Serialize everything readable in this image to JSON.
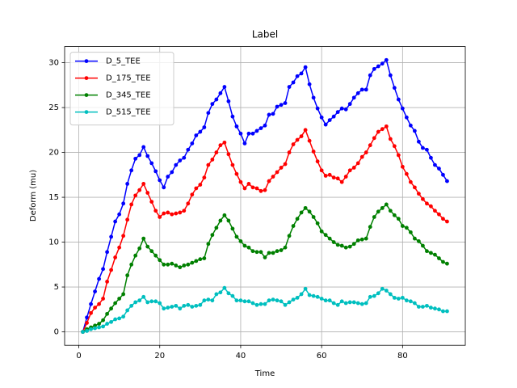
{
  "chart_data": {
    "type": "line",
    "title": "Label",
    "x_label": "Time",
    "y_label": "Deform (mu)",
    "x": [
      1,
      2,
      3,
      4,
      5,
      6,
      7,
      8,
      9,
      10,
      11,
      12,
      13,
      14,
      15,
      16,
      17,
      18,
      19,
      20,
      21,
      22,
      23,
      24,
      25,
      26,
      27,
      28,
      29,
      30,
      31,
      32,
      33,
      34,
      35,
      36,
      37,
      38,
      39,
      40,
      41,
      42,
      43,
      44,
      45,
      46,
      47,
      48,
      49,
      50,
      51,
      52,
      53,
      54,
      55,
      56,
      57,
      58,
      59,
      60,
      61,
      62,
      63,
      64,
      65,
      66,
      67,
      68,
      69,
      70,
      71,
      72,
      73,
      74,
      75,
      76,
      77,
      78,
      79,
      80,
      81,
      82,
      83,
      84,
      85,
      86,
      87,
      88,
      89,
      90,
      91
    ],
    "series": [
      {
        "name": "D_5_TEE",
        "color": "#0000ff",
        "values": [
          0,
          1.6,
          3.1,
          4.5,
          5.9,
          7.0,
          8.9,
          10.6,
          12.3,
          13.1,
          14.3,
          16.5,
          18.0,
          19.3,
          19.7,
          20.6,
          19.6,
          18.8,
          17.9,
          16.9,
          16.1,
          17.3,
          17.8,
          18.6,
          19.1,
          19.4,
          20.3,
          21.0,
          21.9,
          22.3,
          22.8,
          24.4,
          25.4,
          25.9,
          26.6,
          27.3,
          25.7,
          24.0,
          22.9,
          22.1,
          21.0,
          22.1,
          22.1,
          22.4,
          22.7,
          23.0,
          24.2,
          24.3,
          25.1,
          25.3,
          25.5,
          27.3,
          27.8,
          28.5,
          28.8,
          29.5,
          27.6,
          26.1,
          24.9,
          23.9,
          23.1,
          23.6,
          24.0,
          24.5,
          24.9,
          24.8,
          25.4,
          26.1,
          26.6,
          27.0,
          27.0,
          28.6,
          29.3,
          29.6,
          29.9,
          30.3,
          28.6,
          27.2,
          25.9,
          24.9,
          23.9,
          23.0,
          22.4,
          21.2,
          20.5,
          20.3,
          19.4,
          18.6,
          18.2,
          17.5,
          16.8
        ]
      },
      {
        "name": "D_175_TEE",
        "color": "#ff0000",
        "values": [
          0,
          1.0,
          2.1,
          2.7,
          3.1,
          3.7,
          5.6,
          6.9,
          8.3,
          9.4,
          10.7,
          12.5,
          14.2,
          15.2,
          15.8,
          16.5,
          15.5,
          14.5,
          13.5,
          12.8,
          13.2,
          13.3,
          13.1,
          13.2,
          13.3,
          13.5,
          14.3,
          15.3,
          16.0,
          16.4,
          17.2,
          18.6,
          19.2,
          20.0,
          20.8,
          21.1,
          19.8,
          18.6,
          17.6,
          16.7,
          16.0,
          16.5,
          16.1,
          16.0,
          15.7,
          15.8,
          16.8,
          17.3,
          17.8,
          18.3,
          18.7,
          20.0,
          20.9,
          21.4,
          21.8,
          22.5,
          21.3,
          20.1,
          19.0,
          18.0,
          17.4,
          17.5,
          17.2,
          17.1,
          16.7,
          17.3,
          18.0,
          18.3,
          18.8,
          19.5,
          20.0,
          20.8,
          21.6,
          22.3,
          22.6,
          22.9,
          21.5,
          20.7,
          19.7,
          18.4,
          17.6,
          16.7,
          16.1,
          15.4,
          14.8,
          14.3,
          14.0,
          13.5,
          13.1,
          12.6,
          12.3
        ]
      },
      {
        "name": "D_345_TEE",
        "color": "#008000",
        "values": [
          0,
          0.3,
          0.5,
          0.7,
          0.9,
          1.3,
          2.0,
          2.6,
          3.2,
          3.7,
          4.2,
          6.3,
          7.5,
          8.5,
          9.3,
          10.4,
          9.5,
          9.0,
          8.5,
          8.0,
          7.5,
          7.5,
          7.6,
          7.4,
          7.2,
          7.4,
          7.5,
          7.7,
          7.9,
          8.1,
          8.2,
          9.8,
          10.8,
          11.6,
          12.4,
          13.0,
          12.4,
          11.5,
          10.6,
          10.1,
          9.6,
          9.4,
          9.0,
          8.9,
          8.9,
          8.3,
          8.8,
          8.8,
          9.0,
          9.1,
          9.4,
          10.7,
          11.8,
          12.6,
          13.3,
          13.8,
          13.4,
          12.8,
          12.1,
          11.2,
          10.8,
          10.4,
          10.0,
          9.7,
          9.6,
          9.4,
          9.5,
          9.8,
          10.2,
          10.3,
          10.4,
          11.7,
          12.8,
          13.4,
          13.8,
          14.2,
          13.5,
          13.0,
          12.6,
          11.8,
          11.6,
          11.1,
          10.4,
          10.1,
          9.6,
          9.0,
          8.8,
          8.6,
          8.2,
          7.8,
          7.6
        ]
      },
      {
        "name": "D_515_TEE",
        "color": "#00bfbf",
        "values": [
          0,
          0.1,
          0.3,
          0.4,
          0.5,
          0.6,
          0.9,
          1.1,
          1.4,
          1.5,
          1.7,
          2.4,
          2.9,
          3.3,
          3.5,
          3.9,
          3.3,
          3.4,
          3.4,
          3.2,
          2.6,
          2.7,
          2.8,
          2.9,
          2.6,
          2.9,
          3.0,
          2.8,
          2.9,
          3.0,
          3.5,
          3.6,
          3.5,
          4.2,
          4.4,
          4.9,
          4.3,
          4.0,
          3.5,
          3.5,
          3.4,
          3.4,
          3.2,
          3.0,
          3.1,
          3.1,
          3.5,
          3.6,
          3.5,
          3.4,
          3.0,
          3.3,
          3.6,
          3.8,
          4.2,
          4.8,
          4.1,
          4.0,
          3.9,
          3.7,
          3.5,
          3.5,
          3.2,
          3.0,
          3.4,
          3.2,
          3.3,
          3.3,
          3.2,
          3.1,
          3.2,
          3.9,
          4.0,
          4.3,
          4.8,
          4.6,
          4.2,
          3.8,
          3.7,
          3.8,
          3.5,
          3.4,
          3.2,
          2.8,
          2.8,
          2.9,
          2.7,
          2.6,
          2.5,
          2.3,
          2.3
        ]
      }
    ],
    "xlim": [
      -3.5,
      95.5
    ],
    "xticks": [
      0,
      20,
      40,
      60,
      80
    ],
    "ylim": [
      -1.5,
      31.8
    ],
    "yticks": [
      0,
      5,
      10,
      15,
      20,
      25,
      30
    ],
    "grid": true,
    "legend": "upper left"
  }
}
